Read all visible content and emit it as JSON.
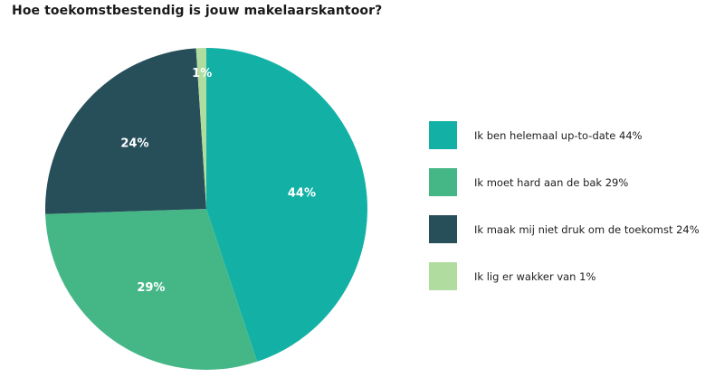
{
  "chart_data": {
    "type": "pie",
    "title": "Hoe toekomstbestendig is jouw makelaarskantoor?",
    "slices": [
      {
        "label": "Ik ben helemaal up-to-date 44%",
        "value": 44,
        "value_label": "44%",
        "color": "#13b1a5"
      },
      {
        "label": "Ik moet hard aan de bak 29%",
        "value": 29,
        "value_label": "29%",
        "color": "#45b787"
      },
      {
        "label": "Ik maak mij niet druk om de toekomst 24%",
        "value": 24,
        "value_label": "24%",
        "color": "#274f5a"
      },
      {
        "label": "Ik lig er wakker van 1%",
        "value": 1,
        "value_label": "1%",
        "color": "#b0dc9f"
      }
    ],
    "legend_position": "right"
  }
}
